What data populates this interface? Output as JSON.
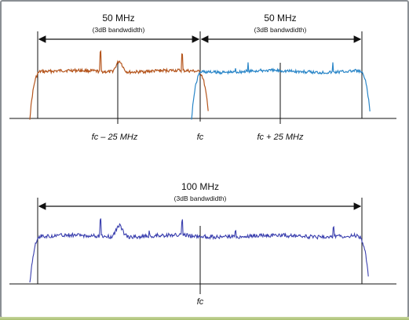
{
  "top_left": {
    "bandwidth": "50 MHz",
    "note": "(3dB bandwdidth)"
  },
  "top_right": {
    "bandwidth": "50 MHz",
    "note": "(3dB bandwdidth)"
  },
  "top_axis": {
    "fc_minus": "fc – 25 MHz",
    "fc": "fc",
    "fc_plus": "fc + 25 MHz"
  },
  "bottom": {
    "bandwidth": "100 MHz",
    "note": "(3dB bandwdidth)"
  },
  "bottom_axis": {
    "fc": "fc"
  },
  "colors": {
    "left_band": "#b5561e",
    "right_band": "#2a86c8",
    "wide_band": "#3a3fae",
    "line": "#111111"
  }
}
